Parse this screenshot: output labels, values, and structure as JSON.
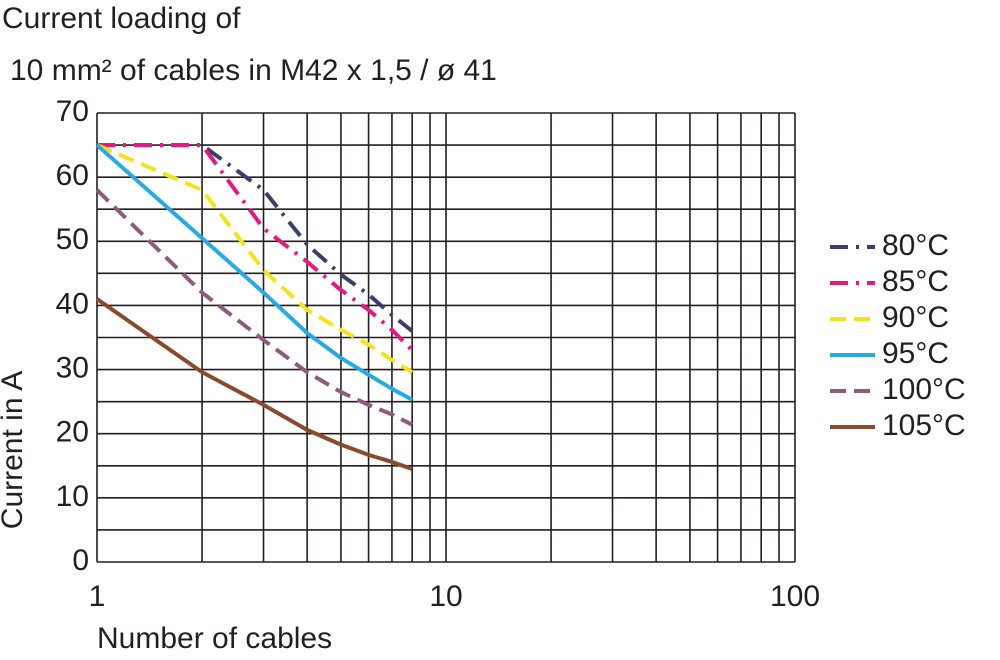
{
  "chart_data": {
    "type": "line",
    "title": [
      "Current  loading  of",
      "10 mm² of cables in M42 x 1,5 / ø 41"
    ],
    "x_label": "Number  of  cables",
    "y_label": "Current in A",
    "x": [
      1,
      2,
      3,
      4,
      5,
      6,
      7,
      8
    ],
    "series": [
      {
        "name": "80°C",
        "color": "#3c3e6a",
        "dash": "18 8 3 8",
        "values": [
          65,
          65,
          58,
          49.5,
          44.8,
          41.7,
          38.5,
          36
        ]
      },
      {
        "name": "85°C",
        "color": "#e2197e",
        "dash": "18 8 3 8",
        "values": [
          65,
          65,
          52,
          46.8,
          42.4,
          39.3,
          36.2,
          33
        ]
      },
      {
        "name": "90°C",
        "color": "#f3e21c",
        "dash": "16 8",
        "values": [
          65,
          58,
          45.5,
          39.3,
          36.2,
          33.9,
          31.5,
          29.6
        ]
      },
      {
        "name": "95°C",
        "color": "#29a9e1",
        "dash": "",
        "values": [
          65,
          50.5,
          42,
          35.7,
          31.8,
          29.2,
          27,
          25.3
        ]
      },
      {
        "name": "100°C",
        "color": "#8f5b7c",
        "dash": "16 8",
        "values": [
          58,
          42,
          34.6,
          29.6,
          26.5,
          24.5,
          23,
          21.4
        ]
      },
      {
        "name": "105°C",
        "color": "#8b4a2b",
        "dash": "",
        "values": [
          41,
          29.6,
          24.5,
          20.6,
          18.3,
          16.7,
          15.6,
          14.5
        ]
      }
    ],
    "xlim": [
      1,
      100
    ],
    "xticks": [
      1,
      10,
      100
    ],
    "xminorticks": [
      2,
      3,
      4,
      5,
      6,
      7,
      8,
      9,
      20,
      30,
      40,
      50,
      60,
      70,
      80,
      90
    ],
    "ylim": [
      0,
      70
    ],
    "yticks": [
      0,
      10,
      20,
      30,
      40,
      50,
      60,
      70
    ],
    "yminorticks": [
      5,
      15,
      25,
      35,
      45,
      55,
      65
    ],
    "x_log": true,
    "grid": true,
    "legend": "right"
  }
}
